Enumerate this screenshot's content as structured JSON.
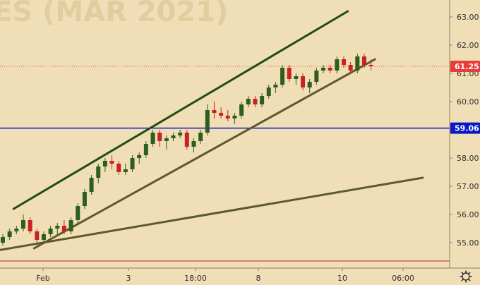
{
  "watermark": "ES (MAR 2021)",
  "colors": {
    "background": "#f0deb6",
    "bull": "#2e5e1e",
    "bear": "#c8231e",
    "channel_upper": "#1f4d12",
    "channel_lower": "#5b5a2c",
    "support": "#5b5a2c",
    "hline": "#0a17c8",
    "price_line": "#d9553c",
    "badge_price": "#ea3a3a",
    "badge_hline": "#0a17c8",
    "axis_text": "#333333"
  },
  "chart_data": {
    "type": "candlestick",
    "title": "",
    "y_ticks": [
      "63.00",
      "62.00",
      "61.00",
      "60.00",
      "59.00",
      "58.00",
      "57.00",
      "56.00",
      "55.00"
    ],
    "ylim": [
      54.1,
      63.6
    ],
    "x_ticks": [
      "Feb",
      "3",
      "18:00",
      "8",
      "10",
      "06:00"
    ],
    "last_price": 61.25,
    "last_price_label": "61.25",
    "horizontal_line": 59.06,
    "horizontal_line_label": "59.06",
    "trendlines": [
      {
        "name": "channel-upper",
        "from": [
          2,
          56.2
        ],
        "to": [
          51,
          63.2
        ]
      },
      {
        "name": "channel-lower",
        "from": [
          5,
          54.8
        ],
        "to": [
          55,
          61.5
        ]
      },
      {
        "name": "long-term-support",
        "from": [
          -1,
          54.7
        ],
        "to": [
          62,
          57.3
        ]
      }
    ],
    "candles": [
      [
        55.0,
        55.3,
        54.9,
        55.2
      ],
      [
        55.2,
        55.5,
        55.1,
        55.4
      ],
      [
        55.4,
        55.6,
        55.3,
        55.5
      ],
      [
        55.5,
        56.0,
        55.4,
        55.8
      ],
      [
        55.8,
        55.9,
        55.3,
        55.4
      ],
      [
        55.4,
        55.5,
        55.0,
        55.1
      ],
      [
        55.1,
        55.4,
        55.0,
        55.3
      ],
      [
        55.3,
        55.6,
        55.2,
        55.5
      ],
      [
        55.5,
        55.7,
        55.3,
        55.6
      ],
      [
        55.6,
        55.8,
        55.3,
        55.4
      ],
      [
        55.4,
        55.9,
        55.3,
        55.8
      ],
      [
        55.8,
        56.4,
        55.7,
        56.3
      ],
      [
        56.3,
        56.9,
        56.2,
        56.8
      ],
      [
        56.8,
        57.4,
        56.7,
        57.3
      ],
      [
        57.3,
        57.8,
        57.1,
        57.7
      ],
      [
        57.7,
        58.0,
        57.5,
        57.9
      ],
      [
        57.9,
        58.1,
        57.6,
        57.8
      ],
      [
        57.8,
        57.9,
        57.4,
        57.5
      ],
      [
        57.5,
        57.8,
        57.4,
        57.6
      ],
      [
        57.6,
        58.1,
        57.5,
        58.0
      ],
      [
        58.0,
        58.2,
        57.8,
        58.1
      ],
      [
        58.1,
        58.6,
        58.0,
        58.5
      ],
      [
        58.5,
        59.0,
        58.4,
        58.9
      ],
      [
        58.9,
        59.0,
        58.4,
        58.6
      ],
      [
        58.6,
        58.8,
        58.3,
        58.7
      ],
      [
        58.7,
        58.9,
        58.6,
        58.8
      ],
      [
        58.8,
        59.0,
        58.7,
        58.9
      ],
      [
        58.9,
        59.0,
        58.3,
        58.4
      ],
      [
        58.4,
        58.7,
        58.2,
        58.6
      ],
      [
        58.6,
        59.0,
        58.5,
        58.9
      ],
      [
        58.9,
        59.9,
        58.8,
        59.7
      ],
      [
        59.7,
        60.0,
        59.4,
        59.6
      ],
      [
        59.6,
        59.8,
        59.4,
        59.5
      ],
      [
        59.5,
        59.7,
        59.3,
        59.4
      ],
      [
        59.4,
        59.6,
        59.2,
        59.5
      ],
      [
        59.5,
        60.0,
        59.4,
        59.9
      ],
      [
        59.9,
        60.2,
        59.8,
        60.1
      ],
      [
        60.1,
        60.2,
        59.8,
        59.9
      ],
      [
        59.9,
        60.3,
        59.8,
        60.2
      ],
      [
        60.2,
        60.6,
        60.1,
        60.5
      ],
      [
        60.5,
        60.7,
        60.3,
        60.6
      ],
      [
        60.6,
        61.3,
        60.5,
        61.2
      ],
      [
        61.2,
        61.3,
        60.7,
        60.8
      ],
      [
        60.8,
        61.0,
        60.6,
        60.9
      ],
      [
        60.9,
        61.0,
        60.4,
        60.5
      ],
      [
        60.5,
        60.8,
        60.3,
        60.7
      ],
      [
        60.7,
        61.2,
        60.6,
        61.1
      ],
      [
        61.1,
        61.3,
        61.0,
        61.2
      ],
      [
        61.2,
        61.3,
        61.0,
        61.1
      ],
      [
        61.1,
        61.6,
        61.0,
        61.5
      ],
      [
        61.5,
        61.6,
        61.2,
        61.3
      ],
      [
        61.3,
        61.4,
        61.0,
        61.1
      ],
      [
        61.1,
        61.7,
        61.0,
        61.6
      ],
      [
        61.6,
        61.7,
        61.2,
        61.3
      ],
      [
        61.3,
        61.5,
        61.1,
        61.25
      ]
    ]
  }
}
